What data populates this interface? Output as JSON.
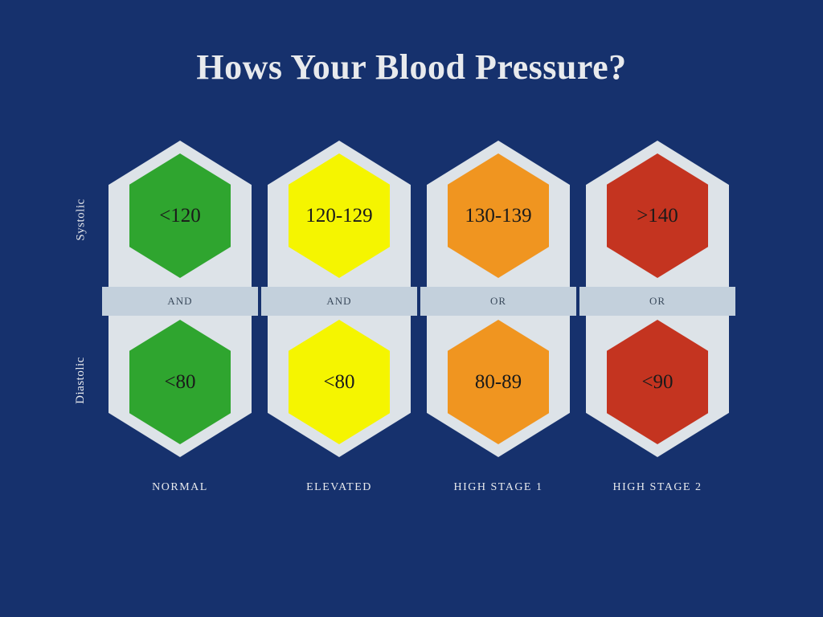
{
  "title": "Hows Your Blood Pressure?",
  "row_labels": {
    "systolic": "Systolic",
    "diastolic": "Diastolic"
  },
  "colors": {
    "background": "#16316d",
    "pill": "#dde3e8",
    "band": "#c3d0dc",
    "title_text": "#e8eaed",
    "hex_text": "#1a1a1a"
  },
  "columns": [
    {
      "label": "NORMAL",
      "systolic": "<120",
      "diastolic": "<80",
      "connector": "AND",
      "color": "#2fa52f"
    },
    {
      "label": "ELEVATED",
      "systolic": "120-129",
      "diastolic": "<80",
      "connector": "AND",
      "color": "#f5f500"
    },
    {
      "label": "HIGH STAGE 1",
      "systolic": "130-139",
      "diastolic": "80-89",
      "connector": "OR",
      "color": "#f09520"
    },
    {
      "label": "HIGH STAGE 2",
      "systolic": ">140",
      "diastolic": "<90",
      "connector": "OR",
      "color": "#c43420"
    }
  ]
}
